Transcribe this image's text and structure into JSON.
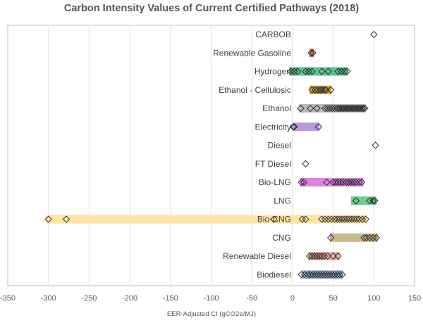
{
  "chart_data": {
    "type": "scatter",
    "title": "Carbon Intensity Values of Current Certified Pathways (2018)",
    "xlabel": "EER-Adjusted CI (gCO2e/MJ)",
    "ylabel": "",
    "xlim": [
      -350,
      150
    ],
    "xticks": [
      "-350",
      "-300",
      "-250",
      "-200",
      "-150",
      "-100",
      "-50",
      "0",
      "50",
      "100",
      "150"
    ],
    "grid": "vertical",
    "legend": "none",
    "categories": [
      "CARBOB",
      "Renewable Gasoline",
      "Hydrogen",
      "Ethanol - Cellulosic",
      "Ethanol",
      "Electricity",
      "Diesel",
      "FT Diesel",
      "Bio-LNG",
      "LNG",
      "Bio-CNG",
      "CNG",
      "Renewable Diesel",
      "Biodiesel"
    ],
    "series": [
      {
        "category": "CARBOB",
        "range": null,
        "color": "",
        "points": [
          100
        ]
      },
      {
        "category": "Renewable Gasoline",
        "range": [
          21,
          26
        ],
        "color": "#e8635f",
        "points": [
          23,
          25
        ]
      },
      {
        "category": "Hydrogen",
        "range": [
          -4,
          68
        ],
        "color": "#5fc190",
        "points": [
          -2,
          2,
          6,
          16,
          20,
          24,
          36,
          44,
          56,
          60,
          64,
          67
        ]
      },
      {
        "category": "Ethanol - Cellulosic",
        "range": [
          21,
          48
        ],
        "color": "#c8a23a",
        "points": [
          24,
          28,
          31,
          34,
          36,
          39,
          41,
          47
        ]
      },
      {
        "category": "Ethanol",
        "range": [
          8,
          90
        ],
        "color": "#b8b8b8",
        "points": [
          10,
          22,
          30,
          40,
          43,
          46,
          49,
          52,
          55,
          57,
          59,
          61,
          63,
          65,
          67,
          69,
          71,
          73,
          75,
          77,
          79,
          81,
          83,
          85,
          87,
          89
        ]
      },
      {
        "category": "Electricity",
        "range": [
          0,
          33
        ],
        "color": "#b99ad8",
        "points": [
          1,
          2,
          32
        ]
      },
      {
        "category": "Diesel",
        "range": null,
        "color": "",
        "points": [
          102
        ]
      },
      {
        "category": "FT Diesel",
        "range": null,
        "color": "",
        "points": [
          16
        ]
      },
      {
        "category": "Bio-LNG",
        "range": [
          9,
          87
        ],
        "color": "#dd86dd",
        "points": [
          11,
          14,
          42,
          50,
          53,
          56,
          59,
          62,
          66,
          69,
          72,
          75,
          78,
          82,
          85
        ]
      },
      {
        "category": "LNG",
        "range": [
          72,
          103
        ],
        "color": "#6dcc8e",
        "points": [
          78,
          95,
          99,
          101
        ]
      },
      {
        "category": "Bio-CNG",
        "range": [
          -303,
          92
        ],
        "color": "#fde5a8",
        "points": [
          -300,
          -278,
          -23,
          12,
          16,
          36,
          40,
          44,
          48,
          52,
          55,
          58,
          61,
          64,
          67,
          70,
          73,
          76,
          79,
          82,
          86,
          90
        ]
      },
      {
        "category": "CNG",
        "range": [
          46,
          105
        ],
        "color": "#c5b98e",
        "points": [
          47,
          88,
          91,
          95,
          99,
          103
        ]
      },
      {
        "category": "Renewable Diesel",
        "range": [
          19,
          58
        ],
        "color": "#e9b3a8",
        "points": [
          21,
          24,
          27,
          30,
          33,
          36,
          39,
          43,
          50,
          56
        ]
      },
      {
        "category": "Biodiesel",
        "range": [
          11,
          62
        ],
        "color": "#9db7d8",
        "points": [
          11,
          15,
          19,
          22,
          25,
          28,
          31,
          34,
          37,
          40,
          43,
          46,
          49,
          52,
          55,
          58,
          61
        ]
      }
    ]
  }
}
